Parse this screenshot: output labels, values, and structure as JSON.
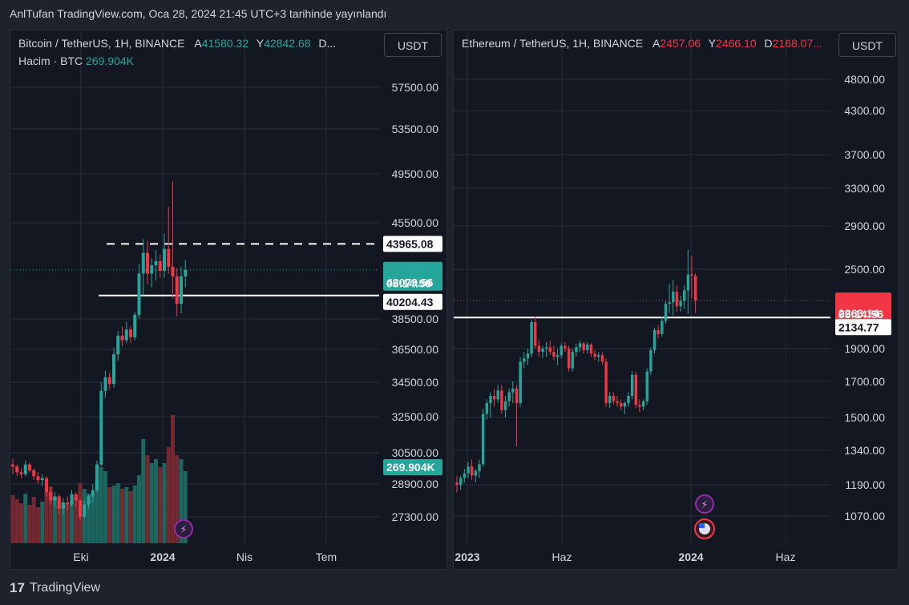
{
  "header": {
    "published": "AnlTufan TradingView.com, Oca 28, 2024 21:45 UTC+3 tarihinde yayınlandı"
  },
  "footer": {
    "logo_mark": "17",
    "brand": "TradingView"
  },
  "colors": {
    "up": "#26a69a",
    "down": "#f23645",
    "bg": "#131722",
    "grid": "#2a2e39",
    "axis_text": "#d1d4dc"
  },
  "chart_data": [
    {
      "type": "candlestick",
      "symbol": "Bitcoin / TetherUS, 1H, BINANCE",
      "legend": {
        "a_label": "A",
        "a_value": "41580.32",
        "y_label": "Y",
        "y_value": "42842.68",
        "d_label": "D..."
      },
      "volume_label": "Hacim · BTC",
      "volume_value": "269.904K",
      "currency_button": "USDT",
      "y_ticks": [
        "57500.00",
        "53500.00",
        "49500.00",
        "45500.00",
        "38500.00",
        "36500.00",
        "34500.00",
        "32500.00",
        "30500.00",
        "28900.00",
        "27300.00"
      ],
      "x_ticks": [
        "Eki",
        "2024",
        "Nis",
        "Tem"
      ],
      "price_labels": {
        "resistance": "43965.08",
        "current": "42073.56",
        "countdown": "05:14:56",
        "support": "40204.43",
        "volume": "269.904K"
      },
      "levels": [
        {
          "name": "resistance",
          "value": 43965.08,
          "style": "dashed"
        },
        {
          "name": "support",
          "value": 40204.43,
          "style": "solid"
        }
      ],
      "candles": [
        [
          29900,
          30200,
          29400,
          29800
        ],
        [
          29800,
          29900,
          29300,
          29500
        ],
        [
          29500,
          29700,
          29200,
          29400
        ],
        [
          29400,
          30100,
          29300,
          29900
        ],
        [
          29900,
          30000,
          29500,
          29600
        ],
        [
          29600,
          29700,
          29100,
          29300
        ],
        [
          29300,
          29500,
          28900,
          29100
        ],
        [
          29100,
          29400,
          28800,
          29200
        ],
        [
          29200,
          29300,
          28300,
          28500
        ],
        [
          28500,
          28800,
          27900,
          28100
        ],
        [
          28100,
          28500,
          27800,
          28300
        ],
        [
          28300,
          28400,
          27400,
          27700
        ],
        [
          27700,
          28200,
          27400,
          28000
        ],
        [
          28000,
          28300,
          27600,
          27900
        ],
        [
          27900,
          28600,
          27800,
          28400
        ],
        [
          28400,
          28500,
          27800,
          28100
        ],
        [
          28100,
          28200,
          27100,
          27300
        ],
        [
          27300,
          28100,
          27200,
          27900
        ],
        [
          27900,
          28400,
          27700,
          28300
        ],
        [
          28300,
          28900,
          28000,
          28600
        ],
        [
          28600,
          30100,
          28500,
          29900
        ],
        [
          29900,
          34500,
          29800,
          34000
        ],
        [
          34000,
          35200,
          33600,
          34800
        ],
        [
          34800,
          35100,
          34100,
          34400
        ],
        [
          34400,
          36600,
          34200,
          36200
        ],
        [
          36200,
          37700,
          35800,
          37400
        ],
        [
          37400,
          38000,
          36700,
          37100
        ],
        [
          37100,
          38300,
          36900,
          37800
        ],
        [
          37800,
          38000,
          36900,
          37300
        ],
        [
          37300,
          39000,
          37100,
          38800
        ],
        [
          38800,
          42500,
          38500,
          41800
        ],
        [
          41800,
          44300,
          40200,
          43300
        ],
        [
          43300,
          44200,
          41000,
          41800
        ],
        [
          41800,
          42900,
          40800,
          42400
        ],
        [
          42400,
          43500,
          41300,
          42700
        ],
        [
          42700,
          43200,
          41500,
          42000
        ],
        [
          42000,
          44700,
          41500,
          43600
        ],
        [
          43600,
          46800,
          41800,
          42300
        ],
        [
          42300,
          48900,
          40000,
          41600
        ],
        [
          41600,
          42200,
          38700,
          39600
        ],
        [
          39600,
          42300,
          38900,
          41600
        ],
        [
          41600,
          42800,
          40800,
          42073
        ]
      ],
      "volumes": [
        60,
        55,
        50,
        62,
        48,
        58,
        45,
        52,
        65,
        70,
        58,
        55,
        50,
        48,
        52,
        60,
        75,
        68,
        62,
        60,
        80,
        95,
        90,
        70,
        72,
        75,
        68,
        70,
        65,
        72,
        85,
        130,
        110,
        100,
        105,
        95,
        100,
        120,
        160,
        110,
        105,
        90
      ]
    },
    {
      "type": "candlestick",
      "symbol": "Ethereum / TetherUS, 1H, BINANCE",
      "legend": {
        "a_label": "A",
        "a_value": "2457.06",
        "y_label": "Y",
        "y_value": "2466.10",
        "d_label": "D",
        "d_value": "2168.07..."
      },
      "currency_button": "USDT",
      "y_ticks": [
        "4800.00",
        "4300.00",
        "3700.00",
        "3300.00",
        "2900.00",
        "2500.00",
        "1900.00",
        "1700.00",
        "1500.00",
        "1340.00",
        "1190.00",
        "1070.00"
      ],
      "x_ticks": [
        "2023",
        "Haz",
        "2024",
        "Haz"
      ],
      "price_labels": {
        "current": "2263.14",
        "countdown": "05:14:56",
        "support": "2134.77"
      },
      "levels": [
        {
          "name": "support",
          "value": 2134.77,
          "style": "solid"
        }
      ],
      "candles": [
        [
          1200,
          1230,
          1160,
          1190
        ],
        [
          1190,
          1230,
          1170,
          1220
        ],
        [
          1220,
          1260,
          1200,
          1240
        ],
        [
          1240,
          1290,
          1220,
          1270
        ],
        [
          1270,
          1300,
          1210,
          1230
        ],
        [
          1230,
          1260,
          1200,
          1250
        ],
        [
          1250,
          1300,
          1220,
          1280
        ],
        [
          1280,
          1550,
          1270,
          1520
        ],
        [
          1520,
          1600,
          1490,
          1580
        ],
        [
          1580,
          1640,
          1500,
          1620
        ],
        [
          1620,
          1660,
          1560,
          1600
        ],
        [
          1600,
          1680,
          1580,
          1650
        ],
        [
          1650,
          1680,
          1520,
          1540
        ],
        [
          1540,
          1620,
          1500,
          1590
        ],
        [
          1590,
          1660,
          1560,
          1640
        ],
        [
          1640,
          1700,
          1580,
          1660
        ],
        [
          1660,
          1680,
          1360,
          1580
        ],
        [
          1580,
          1850,
          1560,
          1820
        ],
        [
          1820,
          1880,
          1780,
          1840
        ],
        [
          1840,
          1900,
          1800,
          1870
        ],
        [
          1870,
          2120,
          1850,
          2100
        ],
        [
          2100,
          2140,
          1900,
          1920
        ],
        [
          1920,
          1960,
          1850,
          1880
        ],
        [
          1880,
          1920,
          1840,
          1900
        ],
        [
          1900,
          1950,
          1850,
          1910
        ],
        [
          1910,
          1960,
          1860,
          1880
        ],
        [
          1880,
          1920,
          1830,
          1850
        ],
        [
          1850,
          1900,
          1800,
          1860
        ],
        [
          1860,
          1940,
          1840,
          1920
        ],
        [
          1920,
          1950,
          1880,
          1900
        ],
        [
          1900,
          1920,
          1760,
          1780
        ],
        [
          1780,
          1900,
          1760,
          1880
        ],
        [
          1880,
          1940,
          1850,
          1910
        ],
        [
          1910,
          1960,
          1880,
          1940
        ],
        [
          1940,
          1950,
          1870,
          1890
        ],
        [
          1890,
          1950,
          1870,
          1930
        ],
        [
          1930,
          1940,
          1850,
          1870
        ],
        [
          1870,
          1890,
          1830,
          1850
        ],
        [
          1850,
          1880,
          1820,
          1860
        ],
        [
          1860,
          1880,
          1800,
          1820
        ],
        [
          1820,
          1840,
          1560,
          1580
        ],
        [
          1580,
          1640,
          1550,
          1620
        ],
        [
          1620,
          1640,
          1570,
          1590
        ],
        [
          1590,
          1620,
          1560,
          1580
        ],
        [
          1580,
          1600,
          1540,
          1560
        ],
        [
          1560,
          1590,
          1520,
          1580
        ],
        [
          1580,
          1640,
          1560,
          1620
        ],
        [
          1620,
          1760,
          1600,
          1740
        ],
        [
          1740,
          1760,
          1550,
          1570
        ],
        [
          1570,
          1600,
          1530,
          1560
        ],
        [
          1560,
          1600,
          1540,
          1590
        ],
        [
          1590,
          1780,
          1570,
          1760
        ],
        [
          1760,
          1910,
          1740,
          1890
        ],
        [
          1890,
          2060,
          1870,
          2040
        ],
        [
          2040,
          2080,
          1980,
          2010
        ],
        [
          2010,
          2140,
          1990,
          2110
        ],
        [
          2110,
          2260,
          2090,
          2240
        ],
        [
          2240,
          2390,
          2170,
          2250
        ],
        [
          2250,
          2420,
          2150,
          2330
        ],
        [
          2330,
          2380,
          2180,
          2220
        ],
        [
          2220,
          2300,
          2180,
          2260
        ],
        [
          2260,
          2380,
          2200,
          2340
        ],
        [
          2340,
          2680,
          2160,
          2460
        ],
        [
          2460,
          2620,
          2280,
          2450
        ],
        [
          2450,
          2470,
          2168,
          2263
        ]
      ]
    }
  ]
}
